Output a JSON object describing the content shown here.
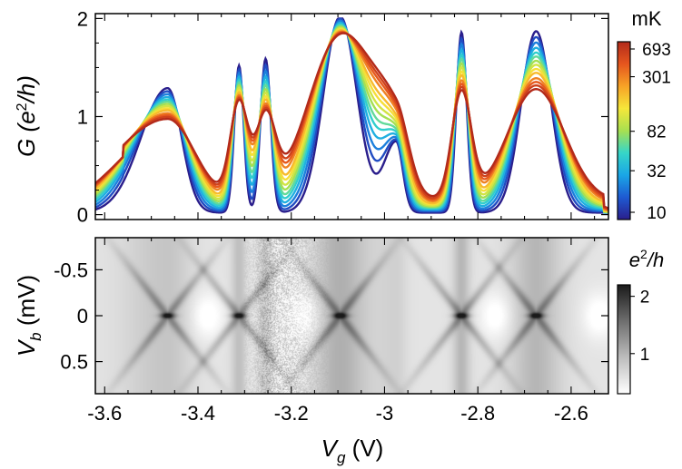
{
  "chart_data": [
    {
      "type": "line",
      "panel": "top",
      "ylabel": {
        "symbol": "G",
        "unit_open": "(e",
        "unit_exp": "2",
        "unit_close": "/h)"
      },
      "xlim": [
        -3.62,
        -2.52
      ],
      "ylim": [
        -0.05,
        2.05
      ],
      "yticks": [
        {
          "v": 0,
          "label": "0"
        },
        {
          "v": 1,
          "label": "1"
        },
        {
          "v": 2,
          "label": "2"
        }
      ],
      "colorbar": {
        "unit": "mK",
        "scale": "log",
        "range": [
          10,
          693
        ],
        "ticks": [
          {
            "v": 693,
            "label": "693"
          },
          {
            "v": 301,
            "label": "301"
          },
          {
            "v": 82,
            "label": "82"
          },
          {
            "v": 32,
            "label": "32"
          },
          {
            "v": 10,
            "label": "10"
          }
        ],
        "colors": [
          "#2a1e8c",
          "#1e5ad2",
          "#1aa6e6",
          "#36d6c8",
          "#a8e050",
          "#f6e73a",
          "#f7a326",
          "#e5561e",
          "#b32a1a"
        ]
      },
      "peaks": [
        {
          "x": -3.555,
          "cold": 0.0,
          "hot": 0.0,
          "w": 0.0
        },
        {
          "x": -3.465,
          "cold": 1.27,
          "hot": 0.88,
          "w": 0.03
        },
        {
          "x": -3.312,
          "cold": 1.5,
          "hot": 1.03,
          "w": 0.01
        },
        {
          "x": -3.255,
          "cold": 1.57,
          "hot": 0.85,
          "w": 0.011
        },
        {
          "x": -3.095,
          "cold": 2.0,
          "hot": 1.75,
          "w": 0.036
        },
        {
          "x": -2.975,
          "cold": 0.72,
          "hot": 0.72,
          "w": 0.014
        },
        {
          "x": -2.835,
          "cold": 1.84,
          "hot": 1.15,
          "w": 0.011
        },
        {
          "x": -2.675,
          "cold": 1.85,
          "hot": 1.2,
          "w": 0.032
        }
      ],
      "series_temperatures_mK": [
        10,
        15,
        22,
        32,
        45,
        60,
        82,
        110,
        150,
        200,
        301,
        400,
        520,
        693
      ]
    },
    {
      "type": "heatmap",
      "panel": "bottom",
      "xlabel": {
        "symbol": "V",
        "sub": "g",
        "unit": " (V)"
      },
      "ylabel": {
        "symbol": "V",
        "sub": "b",
        "unit": " (mV)"
      },
      "xlim": [
        -3.62,
        -2.52
      ],
      "ylim": [
        -0.85,
        0.85
      ],
      "xticks": [
        {
          "v": -3.6,
          "label": "-3.6"
        },
        {
          "v": -3.4,
          "label": "-3.4"
        },
        {
          "v": -3.2,
          "label": "-3.2"
        },
        {
          "v": -3.0,
          "label": "-3"
        },
        {
          "v": -2.8,
          "label": "-2.8"
        },
        {
          "v": -2.6,
          "label": "-2.6"
        }
      ],
      "yticks": [
        {
          "v": -0.5,
          "label": "-0.5"
        },
        {
          "v": 0,
          "label": "0"
        },
        {
          "v": 0.5,
          "label": "0.5"
        }
      ],
      "colorbar": {
        "unit_open": "e",
        "unit_exp": "2",
        "unit_close": "/h",
        "range": [
          0.3,
          2.2
        ],
        "ticks": [
          {
            "v": 2,
            "label": "2"
          },
          {
            "v": 1,
            "label": "1"
          }
        ],
        "colors": [
          "#ffffff",
          "#bdbdbd",
          "#6e6e6e",
          "#1a1a1a"
        ]
      },
      "dark_nodes_at_zero_bias": [
        -3.465,
        -3.312,
        -3.095,
        -2.835,
        -2.675
      ],
      "bright_lobes": [
        -3.38,
        -3.17,
        -2.76,
        -2.54
      ]
    }
  ]
}
